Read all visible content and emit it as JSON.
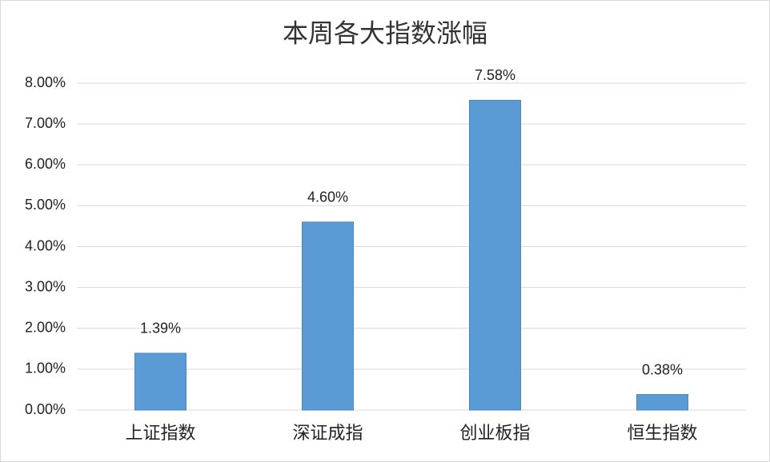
{
  "chart_data": {
    "type": "bar",
    "title": "本周各大指数涨幅",
    "categories": [
      "上证指数",
      "深证成指",
      "创业板指",
      "恒生指数"
    ],
    "values": [
      1.39,
      4.6,
      7.58,
      0.38
    ],
    "value_labels": [
      "1.39%",
      "4.60%",
      "7.58%",
      "0.38%"
    ],
    "color": "#5b9bd5",
    "ylim": [
      0,
      8
    ],
    "yticks": [
      {
        "value": 0,
        "label": "0.00%"
      },
      {
        "value": 1,
        "label": "1.00%"
      },
      {
        "value": 2,
        "label": "2.00%"
      },
      {
        "value": 3,
        "label": "3.00%"
      },
      {
        "value": 4,
        "label": "4.00%"
      },
      {
        "value": 5,
        "label": "5.00%"
      },
      {
        "value": 6,
        "label": "6.00%"
      },
      {
        "value": 7,
        "label": "7.00%"
      },
      {
        "value": 8,
        "label": "8.00%"
      }
    ],
    "grid": true
  }
}
